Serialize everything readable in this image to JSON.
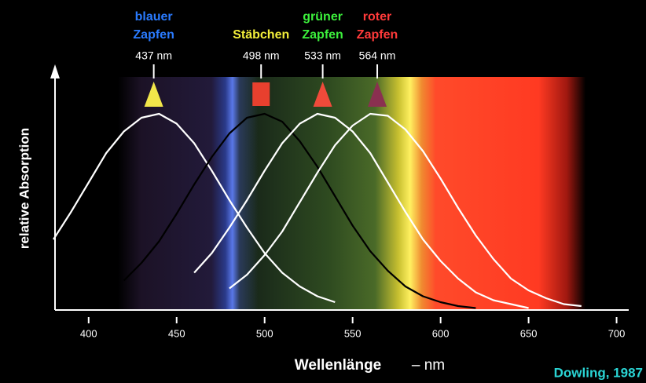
{
  "chart_data": {
    "type": "line",
    "y_label": "relative Absorption",
    "x_label": "Wellenlänge",
    "x_unit": "– nm",
    "source": "Dowling, 1987",
    "xlim": [
      380,
      706
    ],
    "ylim": [
      0,
      1.24
    ],
    "xticks": [
      400,
      450,
      500,
      550,
      600,
      650,
      700
    ],
    "x": [
      380,
      390,
      400,
      410,
      420,
      430,
      440,
      450,
      460,
      470,
      480,
      490,
      500,
      510,
      520,
      530,
      540,
      550,
      560,
      570,
      580,
      590,
      600,
      610,
      620,
      630,
      640,
      650,
      660,
      670,
      680
    ],
    "series": [
      {
        "color": "#ffffff",
        "values": [
          0.36,
          0.5,
          0.65,
          0.8,
          0.91,
          0.98,
          1.0,
          0.95,
          0.85,
          0.71,
          0.56,
          0.42,
          0.29,
          0.19,
          0.12,
          0.07,
          0.04,
          null,
          null,
          null,
          null,
          null,
          null,
          null,
          null,
          null,
          null,
          null,
          null,
          null,
          null
        ]
      },
      {
        "color": "#000000",
        "values": [
          null,
          null,
          null,
          null,
          0.15,
          0.24,
          0.35,
          0.49,
          0.64,
          0.78,
          0.9,
          0.98,
          1.0,
          0.96,
          0.86,
          0.73,
          0.58,
          0.43,
          0.3,
          0.2,
          0.12,
          0.07,
          0.04,
          0.02,
          0.01,
          null,
          null,
          null,
          null,
          null,
          null
        ]
      },
      {
        "color": "#ffffff",
        "values": [
          null,
          null,
          null,
          null,
          null,
          null,
          null,
          null,
          0.19,
          0.29,
          0.42,
          0.56,
          0.71,
          0.85,
          0.95,
          1.0,
          0.98,
          0.91,
          0.8,
          0.65,
          0.5,
          0.36,
          0.25,
          0.16,
          0.09,
          0.05,
          0.03,
          0.01,
          null,
          null,
          null
        ]
      },
      {
        "color": "#ffffff",
        "values": [
          null,
          null,
          null,
          null,
          null,
          null,
          null,
          null,
          null,
          null,
          0.11,
          0.18,
          0.28,
          0.4,
          0.55,
          0.7,
          0.84,
          0.94,
          1.0,
          0.99,
          0.92,
          0.81,
          0.67,
          0.52,
          0.38,
          0.26,
          0.16,
          0.1,
          0.06,
          0.03,
          0.02
        ]
      }
    ],
    "receptors": [
      {
        "text": [
          "blauer",
          "Zapfen"
        ],
        "color": "#2a7bff",
        "peak": {
          "value": 437,
          "label": "437 nm"
        },
        "marker": "triangle",
        "marker_color": "#f2e64a"
      },
      {
        "text": [
          "Stäbchen"
        ],
        "color": "#f2ee3a",
        "peak": {
          "value": 498,
          "label": "498 nm"
        },
        "marker": "square",
        "marker_color": "#e8402e"
      },
      {
        "text": [
          "grüner",
          "Zapfen"
        ],
        "color": "#3cf03c",
        "peak": {
          "value": 533,
          "label": "533 nm"
        },
        "marker": "triangle",
        "marker_color": "#f04a3a"
      },
      {
        "text": [
          "roter",
          "Zapfen"
        ],
        "color": "#ff3a3a",
        "peak": {
          "value": 564,
          "label": "564 nm"
        },
        "marker": "triangle",
        "marker_color": "#8a3050"
      }
    ]
  }
}
